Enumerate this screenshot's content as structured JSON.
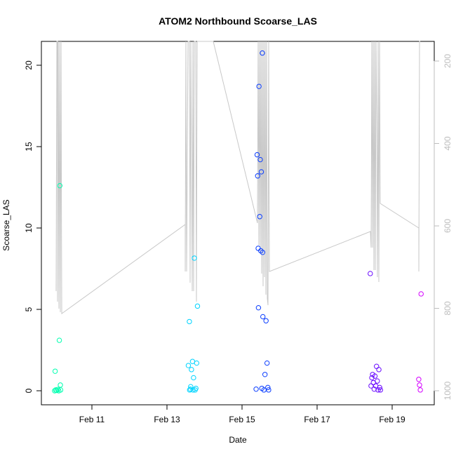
{
  "chart_data": {
    "type": "scatter",
    "title": "ATOM2 Northbound Scoarse_LAS",
    "xlabel": "Date",
    "ylabel": "Scoarse_LAS",
    "x_tick_labels": [
      "Feb 11",
      "Feb 13",
      "Feb 15",
      "Feb 17",
      "Feb 19"
    ],
    "y_tick_labels": [
      "0",
      "5",
      "10",
      "15",
      "20"
    ],
    "y_right_tick_labels": [
      "200",
      "400",
      "600",
      "800",
      "1000"
    ],
    "right_axis_reversed": true,
    "points": [
      {
        "x": "Feb 10 00:10",
        "y": 0.0,
        "color": "#00ffb0"
      },
      {
        "x": "Feb 10 00:50",
        "y": 0.05,
        "color": "#00ffb0"
      },
      {
        "x": "Feb 10 01:30",
        "y": 0.02,
        "color": "#00ffb0"
      },
      {
        "x": "Feb 10 02:10",
        "y": 0.08,
        "color": "#00ffb0"
      },
      {
        "x": "Feb 10 02:50",
        "y": 0.0,
        "color": "#00ffb0"
      },
      {
        "x": "Feb 10 03:10",
        "y": 3.1,
        "color": "#00ffb0"
      },
      {
        "x": "Feb 10 03:30",
        "y": 12.6,
        "color": "#00ffb0"
      },
      {
        "x": "Feb 10 00:30",
        "y": 1.2,
        "color": "#00ffb0"
      },
      {
        "x": "Feb 10 03:50",
        "y": 0.35,
        "color": "#00ffb0"
      },
      {
        "x": "Feb 10 04:00",
        "y": 0.05,
        "color": "#00ffb0"
      },
      {
        "x": "Feb 13 13:40",
        "y": 1.55,
        "color": "#00d4ff"
      },
      {
        "x": "Feb 13 14:20",
        "y": 4.25,
        "color": "#00d4ff"
      },
      {
        "x": "Feb 13 14:30",
        "y": 0.05,
        "color": "#00d4ff"
      },
      {
        "x": "Feb 13 15:00",
        "y": 0.1,
        "color": "#00d4ff"
      },
      {
        "x": "Feb 13 15:40",
        "y": 1.3,
        "color": "#00d4ff"
      },
      {
        "x": "Feb 13 16:20",
        "y": 1.8,
        "color": "#00d4ff"
      },
      {
        "x": "Feb 13 17:00",
        "y": 0.8,
        "color": "#00d4ff"
      },
      {
        "x": "Feb 13 17:30",
        "y": 8.15,
        "color": "#00d4ff"
      },
      {
        "x": "Feb 13 18:00",
        "y": 0.05,
        "color": "#00d4ff"
      },
      {
        "x": "Feb 13 18:30",
        "y": 0.15,
        "color": "#00d4ff"
      },
      {
        "x": "Feb 13 19:00",
        "y": 1.7,
        "color": "#00d4ff"
      },
      {
        "x": "Feb 13 19:30",
        "y": 5.2,
        "color": "#00d4ff"
      },
      {
        "x": "Feb 13 15:10",
        "y": 0.25,
        "color": "#00d4ff"
      },
      {
        "x": "Feb 13 16:40",
        "y": 0.05,
        "color": "#00d4ff"
      },
      {
        "x": "Feb 15 09:00",
        "y": 0.1,
        "color": "#0a3dff"
      },
      {
        "x": "Feb 15 09:40",
        "y": 14.5,
        "color": "#0a3dff"
      },
      {
        "x": "Feb 15 10:00",
        "y": 13.2,
        "color": "#0a3dff"
      },
      {
        "x": "Feb 15 10:20",
        "y": 8.75,
        "color": "#0a3dff"
      },
      {
        "x": "Feb 15 10:30",
        "y": 5.1,
        "color": "#0a3dff"
      },
      {
        "x": "Feb 15 10:50",
        "y": 18.7,
        "color": "#0a3dff"
      },
      {
        "x": "Feb 15 11:20",
        "y": 10.7,
        "color": "#0a3dff"
      },
      {
        "x": "Feb 15 11:40",
        "y": 14.2,
        "color": "#0a3dff"
      },
      {
        "x": "Feb 15 12:00",
        "y": 8.6,
        "color": "#0a3dff"
      },
      {
        "x": "Feb 15 12:20",
        "y": 13.45,
        "color": "#0a3dff"
      },
      {
        "x": "Feb 15 13:00",
        "y": 20.75,
        "color": "#0a3dff"
      },
      {
        "x": "Feb 15 13:10",
        "y": 8.5,
        "color": "#0a3dff"
      },
      {
        "x": "Feb 15 13:20",
        "y": 4.55,
        "color": "#0a3dff"
      },
      {
        "x": "Feb 15 14:00",
        "y": 0.05,
        "color": "#0a3dff"
      },
      {
        "x": "Feb 15 14:40",
        "y": 1.0,
        "color": "#0a3dff"
      },
      {
        "x": "Feb 15 15:20",
        "y": 4.3,
        "color": "#0a3dff"
      },
      {
        "x": "Feb 15 16:00",
        "y": 1.7,
        "color": "#0a3dff"
      },
      {
        "x": "Feb 15 16:30",
        "y": 0.2,
        "color": "#0a3dff"
      },
      {
        "x": "Feb 15 17:00",
        "y": 0.05,
        "color": "#0a3dff"
      },
      {
        "x": "Feb 15 12:40",
        "y": 0.15,
        "color": "#0a3dff"
      },
      {
        "x": "Feb 18 10:00",
        "y": 7.2,
        "color": "#6a0aff"
      },
      {
        "x": "Feb 18 10:30",
        "y": 0.3,
        "color": "#6a0aff"
      },
      {
        "x": "Feb 18 11:00",
        "y": 0.8,
        "color": "#6a0aff"
      },
      {
        "x": "Feb 18 11:30",
        "y": 1.0,
        "color": "#6a0aff"
      },
      {
        "x": "Feb 18 12:00",
        "y": 0.5,
        "color": "#6a0aff"
      },
      {
        "x": "Feb 18 12:30",
        "y": 0.1,
        "color": "#6a0aff"
      },
      {
        "x": "Feb 18 13:00",
        "y": 0.9,
        "color": "#6a0aff"
      },
      {
        "x": "Feb 18 13:30",
        "y": 0.3,
        "color": "#6a0aff"
      },
      {
        "x": "Feb 18 14:00",
        "y": 1.5,
        "color": "#6a0aff"
      },
      {
        "x": "Feb 18 14:30",
        "y": 0.6,
        "color": "#6a0aff"
      },
      {
        "x": "Feb 18 15:00",
        "y": 0.05,
        "color": "#6a0aff"
      },
      {
        "x": "Feb 18 15:30",
        "y": 1.3,
        "color": "#6a0aff"
      },
      {
        "x": "Feb 18 16:00",
        "y": 0.2,
        "color": "#6a0aff"
      },
      {
        "x": "Feb 18 16:30",
        "y": 0.05,
        "color": "#6a0aff"
      },
      {
        "x": "Feb 19 17:00",
        "y": 0.7,
        "color": "#d400ff"
      },
      {
        "x": "Feb 19 17:30",
        "y": 0.35,
        "color": "#d400ff"
      },
      {
        "x": "Feb 19 18:00",
        "y": 0.05,
        "color": "#d400ff"
      },
      {
        "x": "Feb 19 18:30",
        "y": 5.95,
        "color": "#d400ff"
      }
    ],
    "line_color": "#c8c8c8"
  }
}
